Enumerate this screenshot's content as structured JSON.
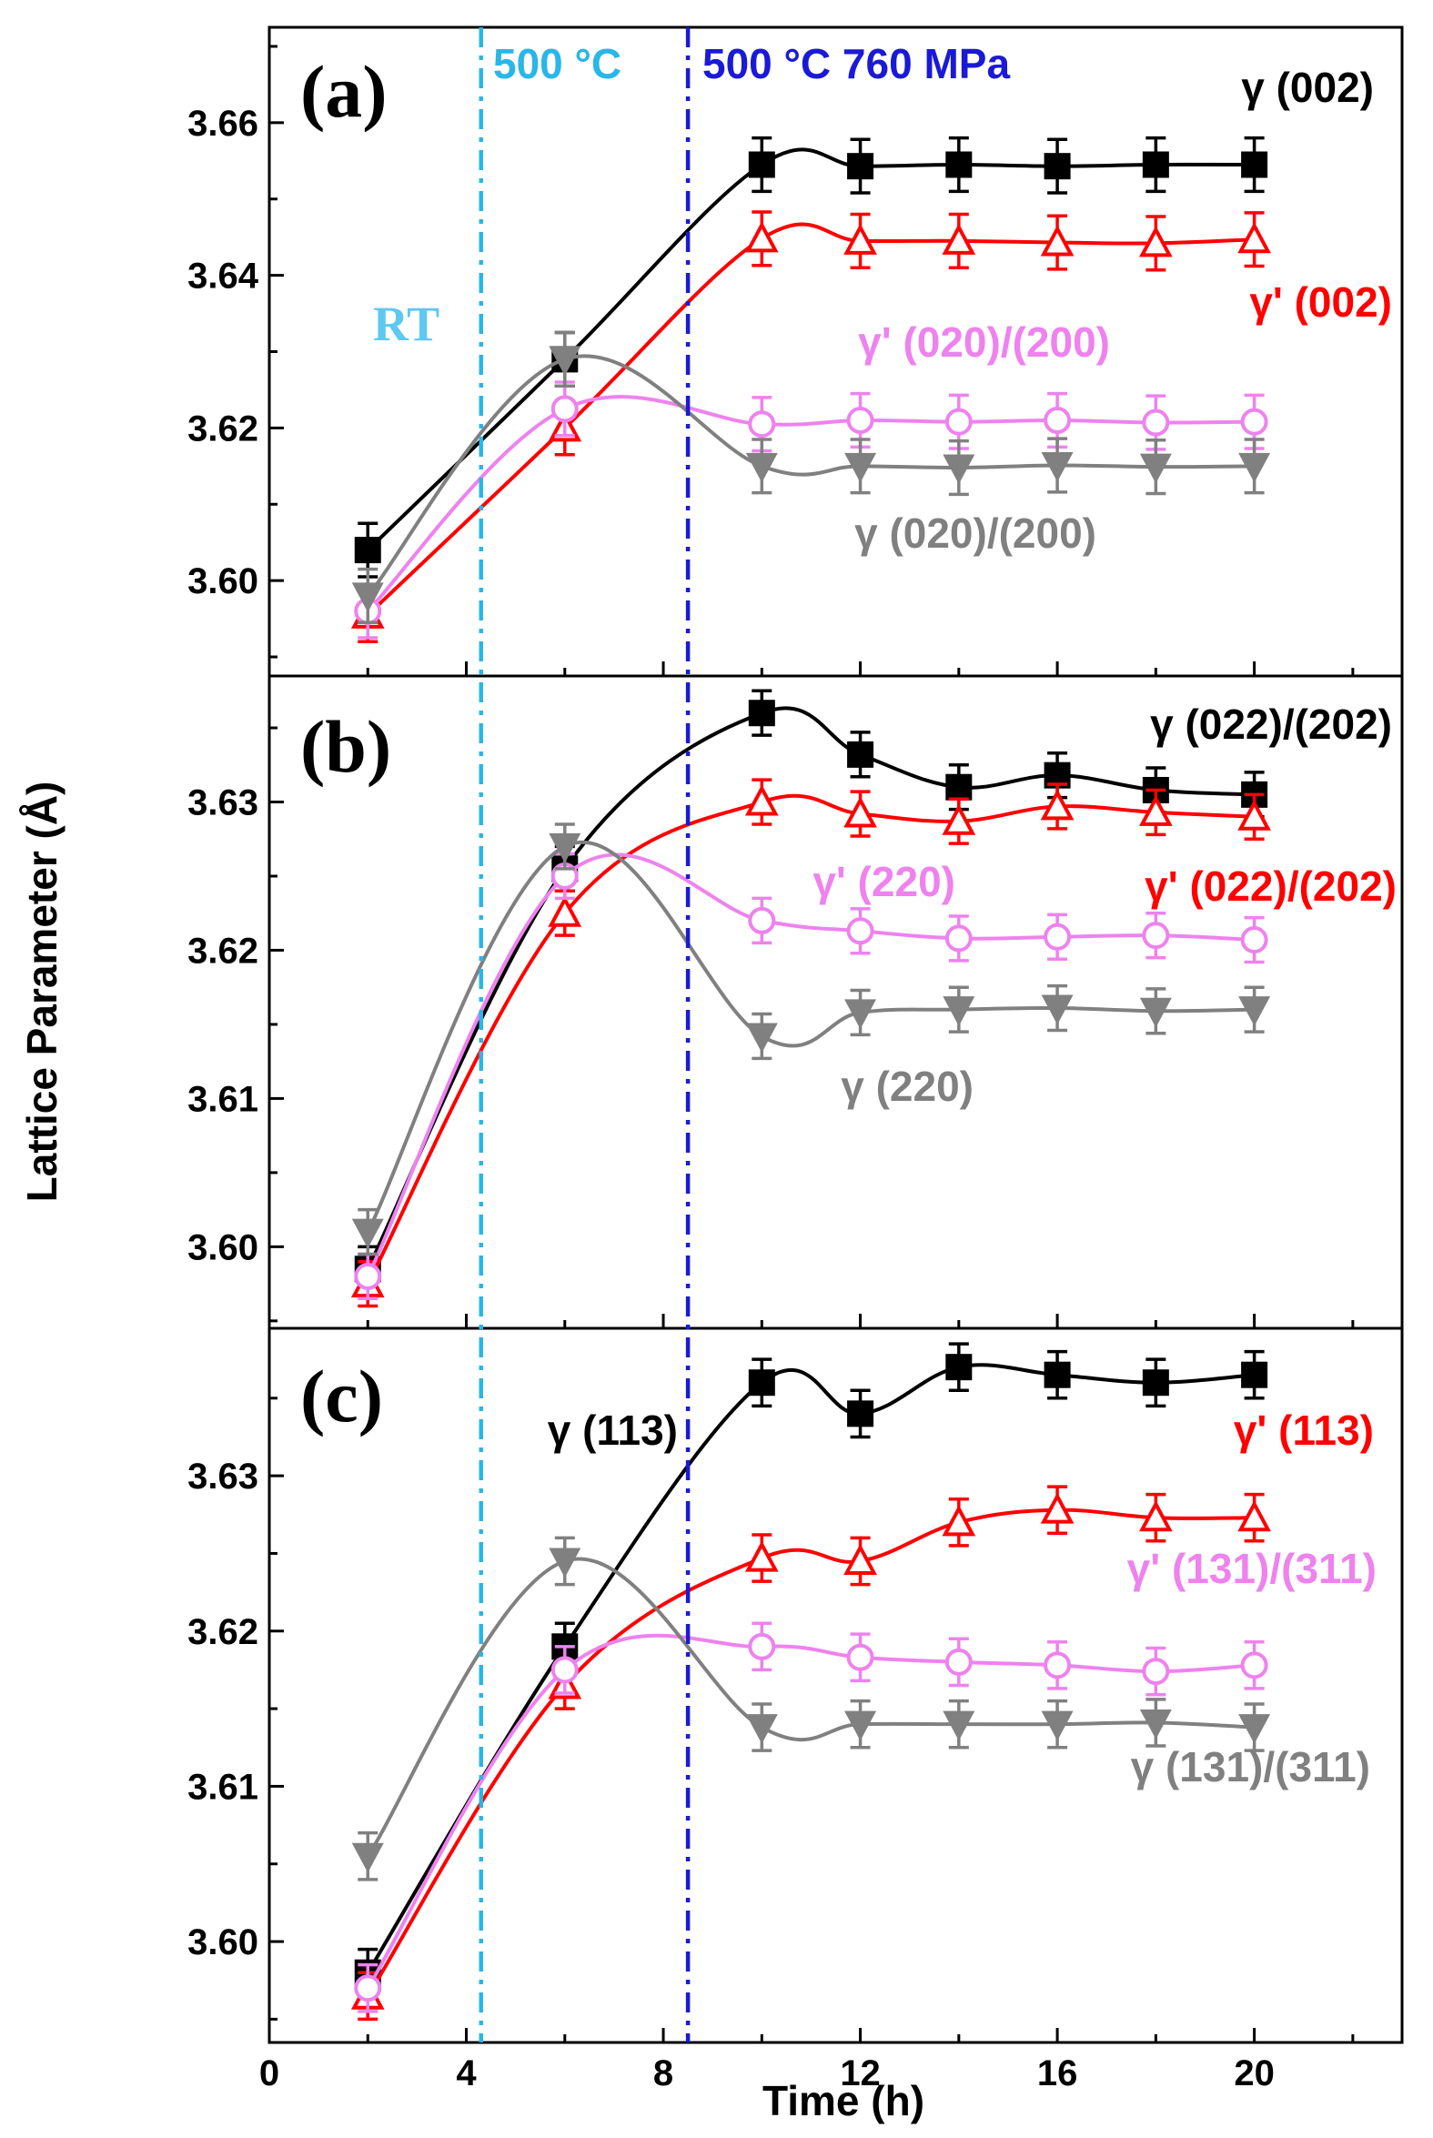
{
  "chart_data": {
    "type": "line",
    "xlabel": "Time (h)",
    "ylabel": "Lattice Parameter (Å)",
    "xlim": [
      0,
      23
    ],
    "x_ticks": [
      "0",
      "4",
      "8",
      "12",
      "16",
      "20"
    ],
    "x_tick_values": [
      0,
      4,
      8,
      12,
      16,
      20
    ],
    "grid": false,
    "legend": "none",
    "vlines": [
      {
        "x": 4.3,
        "color": "#29b6e8",
        "label": "500 °C"
      },
      {
        "x": 8.5,
        "color": "#1a1ad6",
        "label": "500 °C 760 MPa"
      }
    ],
    "stage_labels": [
      {
        "text": "RT",
        "color": "#5ec8f0"
      }
    ],
    "panels": [
      {
        "label": "(a)",
        "ylim": [
          3.5875,
          3.6725
        ],
        "y_ticks": [
          "3.60",
          "3.62",
          "3.64",
          "3.66"
        ],
        "y_tick_values": [
          3.6,
          3.62,
          3.64,
          3.66
        ],
        "x": [
          2,
          6,
          10,
          12,
          14,
          16,
          18,
          20
        ],
        "series": [
          {
            "name": "γ (002)",
            "color": "#000000",
            "marker": "square-filled",
            "values": [
              3.604,
              3.629,
              3.6545,
              3.6543,
              3.6545,
              3.6543,
              3.6545,
              3.6545
            ],
            "err": 0.0035
          },
          {
            "name": "γ' (002)",
            "color": "#ff0000",
            "marker": "triangle-up-open",
            "values": [
              3.5955,
              3.62,
              3.6448,
              3.6445,
              3.6445,
              3.6443,
              3.6442,
              3.6447
            ],
            "err": 0.0035
          },
          {
            "name": "γ' (020)/(200)",
            "color": "#ee82ee",
            "marker": "circle-open",
            "values": [
              3.596,
              3.6225,
              3.6205,
              3.621,
              3.6208,
              3.621,
              3.6207,
              3.6208
            ],
            "err": 0.0035
          },
          {
            "name": "γ (020)/(200)",
            "color": "#808080",
            "marker": "triangle-down-filled",
            "values": [
              3.598,
              3.629,
              3.615,
              3.615,
              3.6148,
              3.6151,
              3.6149,
              3.615
            ],
            "err": 0.0035
          }
        ]
      },
      {
        "label": "(b)",
        "ylim": [
          3.5945,
          3.6385
        ],
        "y_ticks": [
          "3.60",
          "3.61",
          "3.62",
          "3.63"
        ],
        "y_tick_values": [
          3.6,
          3.61,
          3.62,
          3.63
        ],
        "x": [
          2,
          6,
          10,
          12,
          14,
          16,
          18,
          20
        ],
        "series": [
          {
            "name": "γ (022)/(202)",
            "color": "#000000",
            "marker": "square-filled",
            "values": [
              3.5985,
              3.6255,
              3.636,
              3.6332,
              3.631,
              3.6318,
              3.6308,
              3.6305
            ],
            "err": 0.0015
          },
          {
            "name": "γ' (022)/(202)",
            "color": "#ff0000",
            "marker": "triangle-up-open",
            "values": [
              3.5975,
              3.6225,
              3.63,
              3.6292,
              3.6287,
              3.6297,
              3.6293,
              3.629
            ],
            "err": 0.0015
          },
          {
            "name": "γ' (220)",
            "color": "#ee82ee",
            "marker": "circle-open",
            "values": [
              3.598,
              3.625,
              3.622,
              3.6213,
              3.6208,
              3.6209,
              3.621,
              3.6207
            ],
            "err": 0.0015
          },
          {
            "name": "γ (220)",
            "color": "#808080",
            "marker": "triangle-down-filled",
            "values": [
              3.601,
              3.627,
              3.6142,
              3.6158,
              3.616,
              3.6161,
              3.6159,
              3.616
            ],
            "err": 0.0015
          }
        ]
      },
      {
        "label": "(c)",
        "ylim": [
          3.5935,
          3.6395
        ],
        "y_ticks": [
          "3.60",
          "3.61",
          "3.62",
          "3.63"
        ],
        "y_tick_values": [
          3.6,
          3.61,
          3.62,
          3.63
        ],
        "x": [
          2,
          6,
          10,
          12,
          14,
          16,
          18,
          20
        ],
        "series": [
          {
            "name": "γ (113)",
            "color": "#000000",
            "marker": "square-filled",
            "values": [
              3.598,
              3.619,
              3.636,
              3.634,
              3.637,
              3.6365,
              3.636,
              3.6365
            ],
            "err": 0.0015
          },
          {
            "name": "γ' (113)",
            "color": "#ff0000",
            "marker": "triangle-up-open",
            "values": [
              3.5965,
              3.6165,
              3.6247,
              3.6245,
              3.627,
              3.6278,
              3.6273,
              3.6273
            ],
            "err": 0.0015
          },
          {
            "name": "γ' (131)/(311)",
            "color": "#ee82ee",
            "marker": "circle-open",
            "values": [
              3.597,
              3.6175,
              3.619,
              3.6183,
              3.618,
              3.6178,
              3.6174,
              3.6178
            ],
            "err": 0.0015
          },
          {
            "name": "γ (131)/(311)",
            "color": "#808080",
            "marker": "triangle-down-filled",
            "values": [
              3.6055,
              3.6245,
              3.6138,
              3.614,
              3.614,
              3.614,
              3.6141,
              3.6138
            ],
            "err": 0.0015
          }
        ]
      }
    ]
  }
}
